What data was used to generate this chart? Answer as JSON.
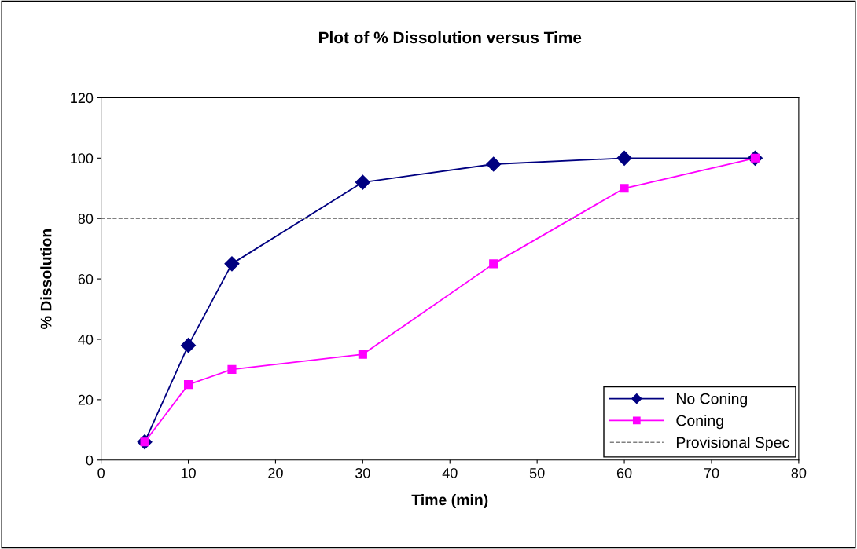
{
  "chart_data": {
    "type": "line",
    "title": "Plot of % Dissolution versus Time",
    "xlabel": "Time (min)",
    "ylabel": "% Dissolution",
    "x": [
      5,
      10,
      15,
      30,
      45,
      60,
      75
    ],
    "series": [
      {
        "name": "No Coning",
        "color": "#000080",
        "marker": "diamond",
        "values": [
          6,
          38,
          65,
          92,
          98,
          100,
          100
        ]
      },
      {
        "name": "Coning",
        "color": "#ff00ff",
        "marker": "square",
        "values": [
          6,
          25,
          30,
          35,
          65,
          90,
          100
        ]
      }
    ],
    "ref_lines": [
      {
        "axis": "y",
        "value": 80,
        "label": "Provisional Spec",
        "color": "#808080",
        "line_style": "dashed"
      }
    ],
    "xlim": [
      0,
      80
    ],
    "xticks": [
      0,
      10,
      20,
      30,
      40,
      50,
      60,
      70,
      80
    ],
    "ylim": [
      0,
      120
    ],
    "yticks": [
      0,
      20,
      40,
      60,
      80,
      100,
      120
    ],
    "grid": false,
    "legend": "bottom right",
    "line_style": "solid"
  }
}
